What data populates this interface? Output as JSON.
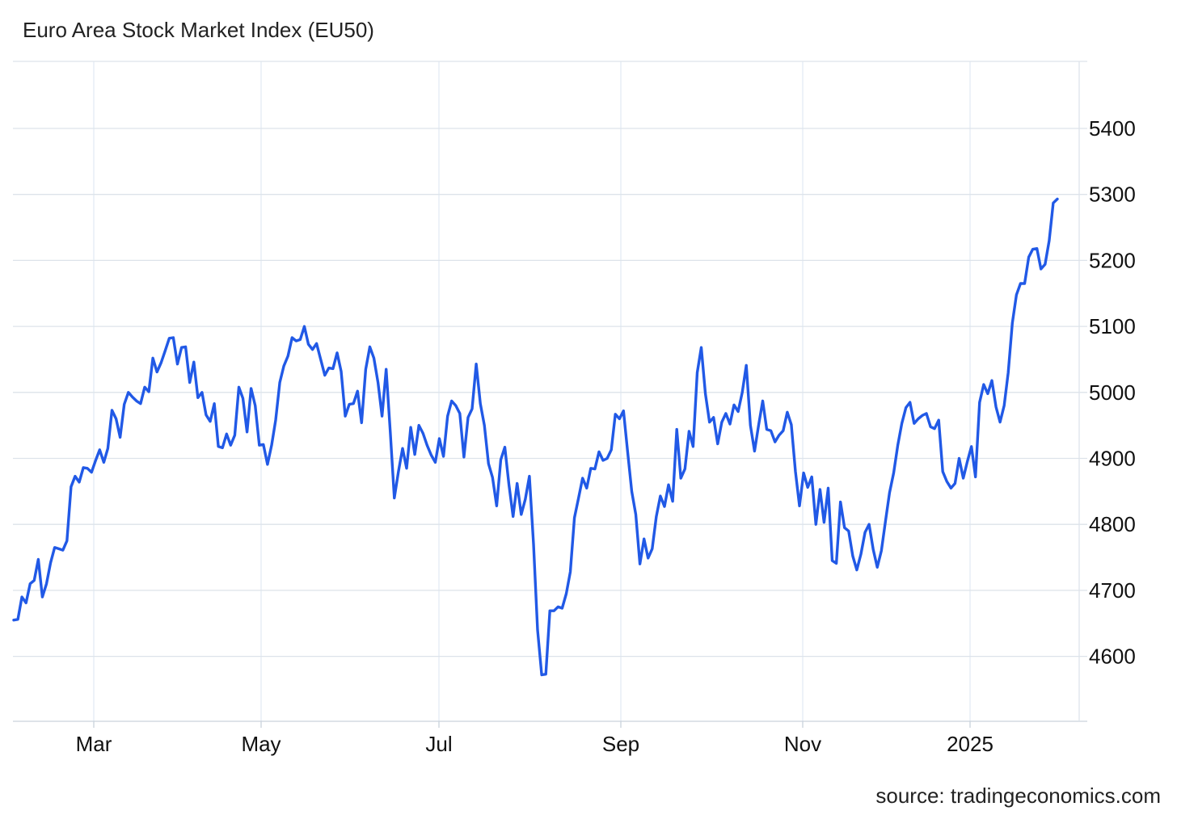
{
  "chart_data": {
    "type": "line",
    "title": "Euro Area Stock Market Index (EU50)",
    "source": "source: tradingeconomics.com",
    "xlabel": "",
    "ylabel": "",
    "grid": true,
    "y_axis_side": "right",
    "line_color": "#2159e6",
    "ylim": [
      4510,
      5510
    ],
    "xlim": [
      0,
      323
    ],
    "y_ticks": [
      {
        "value": 4600,
        "label": "4600"
      },
      {
        "value": 4700,
        "label": "4700"
      },
      {
        "value": 4800,
        "label": "4800"
      },
      {
        "value": 4900,
        "label": "4900"
      },
      {
        "value": 5000,
        "label": "5000"
      },
      {
        "value": 5100,
        "label": "5100"
      },
      {
        "value": 5200,
        "label": "5200"
      },
      {
        "value": 5300,
        "label": "5300"
      },
      {
        "value": 5400,
        "label": "5400"
      }
    ],
    "x_ticks": [
      {
        "x": 24,
        "label": "Mar"
      },
      {
        "x": 75,
        "label": "May"
      },
      {
        "x": 128,
        "label": "Jul"
      },
      {
        "x": 183,
        "label": "Sep"
      },
      {
        "x": 238,
        "label": "Nov"
      },
      {
        "x": 289,
        "label": "2025"
      }
    ],
    "series": [
      {
        "values": [
          [
            0,
            4655
          ],
          [
            1,
            4656
          ],
          [
            2,
            4690
          ],
          [
            3,
            4681
          ],
          [
            4,
            4710
          ],
          [
            5,
            4715
          ],
          [
            6,
            4747
          ],
          [
            7,
            4690
          ],
          [
            8,
            4710
          ],
          [
            9,
            4742
          ],
          [
            10,
            4765
          ],
          [
            11,
            4763
          ],
          [
            12,
            4761
          ],
          [
            13,
            4775
          ],
          [
            14,
            4857
          ],
          [
            15,
            4873
          ],
          [
            16,
            4864
          ],
          [
            17,
            4886
          ],
          [
            18,
            4885
          ],
          [
            19,
            4879
          ],
          [
            20,
            4897
          ],
          [
            21,
            4913
          ],
          [
            22,
            4894
          ],
          [
            23,
            4915
          ],
          [
            24,
            4973
          ],
          [
            25,
            4960
          ],
          [
            26,
            4932
          ],
          [
            27,
            4982
          ],
          [
            28,
            5000
          ],
          [
            29,
            4993
          ],
          [
            30,
            4987
          ],
          [
            31,
            4983
          ],
          [
            32,
            5008
          ],
          [
            33,
            5001
          ],
          [
            34,
            5052
          ],
          [
            35,
            5031
          ],
          [
            36,
            5045
          ],
          [
            37,
            5063
          ],
          [
            38,
            5082
          ],
          [
            39,
            5083
          ],
          [
            40,
            5043
          ],
          [
            41,
            5068
          ],
          [
            42,
            5069
          ],
          [
            43,
            5015
          ],
          [
            44,
            5046
          ],
          [
            45,
            4992
          ],
          [
            46,
            5000
          ],
          [
            47,
            4966
          ],
          [
            48,
            4956
          ],
          [
            49,
            4983
          ],
          [
            50,
            4918
          ],
          [
            51,
            4916
          ],
          [
            52,
            4937
          ],
          [
            53,
            4920
          ],
          [
            54,
            4935
          ],
          [
            55,
            5008
          ],
          [
            56,
            4991
          ],
          [
            57,
            4940
          ],
          [
            58,
            5006
          ],
          [
            59,
            4980
          ],
          [
            60,
            4920
          ],
          [
            61,
            4921
          ],
          [
            62,
            4891
          ],
          [
            63,
            4920
          ],
          [
            64,
            4958
          ],
          [
            65,
            5015
          ],
          [
            66,
            5040
          ],
          [
            67,
            5055
          ],
          [
            68,
            5083
          ],
          [
            69,
            5078
          ],
          [
            70,
            5080
          ],
          [
            71,
            5100
          ],
          [
            72,
            5073
          ],
          [
            73,
            5065
          ],
          [
            74,
            5074
          ],
          [
            75,
            5050
          ],
          [
            76,
            5026
          ],
          [
            77,
            5037
          ],
          [
            78,
            5036
          ],
          [
            79,
            5060
          ],
          [
            80,
            5032
          ],
          [
            81,
            4964
          ],
          [
            82,
            4982
          ],
          [
            83,
            4983
          ],
          [
            84,
            5002
          ],
          [
            85,
            4954
          ],
          [
            86,
            5035
          ],
          [
            87,
            5069
          ],
          [
            88,
            5052
          ],
          [
            89,
            5015
          ],
          [
            90,
            4964
          ],
          [
            91,
            5035
          ],
          [
            92,
            4940
          ],
          [
            93,
            4840
          ],
          [
            94,
            4880
          ],
          [
            95,
            4915
          ],
          [
            96,
            4885
          ],
          [
            97,
            4947
          ],
          [
            98,
            4906
          ],
          [
            99,
            4950
          ],
          [
            100,
            4938
          ],
          [
            101,
            4920
          ],
          [
            102,
            4905
          ],
          [
            103,
            4894
          ],
          [
            104,
            4930
          ],
          [
            105,
            4903
          ],
          [
            106,
            4964
          ],
          [
            107,
            4987
          ],
          [
            108,
            4980
          ],
          [
            109,
            4968
          ],
          [
            110,
            4902
          ],
          [
            111,
            4962
          ],
          [
            112,
            4975
          ],
          [
            113,
            5043
          ],
          [
            114,
            4983
          ],
          [
            115,
            4950
          ],
          [
            116,
            4892
          ],
          [
            117,
            4871
          ],
          [
            118,
            4828
          ],
          [
            119,
            4898
          ],
          [
            120,
            4917
          ],
          [
            121,
            4860
          ],
          [
            122,
            4812
          ],
          [
            123,
            4862
          ],
          [
            124,
            4815
          ],
          [
            125,
            4838
          ],
          [
            126,
            4873
          ],
          [
            127,
            4770
          ],
          [
            128,
            4640
          ],
          [
            129,
            4572
          ],
          [
            130,
            4573
          ],
          [
            131,
            4669
          ],
          [
            132,
            4669
          ],
          [
            133,
            4675
          ],
          [
            134,
            4673
          ],
          [
            135,
            4695
          ],
          [
            136,
            4728
          ],
          [
            137,
            4810
          ],
          [
            138,
            4840
          ],
          [
            139,
            4870
          ],
          [
            140,
            4855
          ],
          [
            141,
            4885
          ],
          [
            142,
            4884
          ],
          [
            143,
            4910
          ],
          [
            144,
            4897
          ],
          [
            145,
            4900
          ],
          [
            146,
            4913
          ],
          [
            147,
            4967
          ],
          [
            148,
            4960
          ],
          [
            149,
            4972
          ],
          [
            150,
            4910
          ],
          [
            151,
            4850
          ],
          [
            152,
            4815
          ],
          [
            153,
            4740
          ],
          [
            154,
            4778
          ],
          [
            155,
            4749
          ],
          [
            156,
            4763
          ],
          [
            157,
            4812
          ],
          [
            158,
            4843
          ],
          [
            159,
            4827
          ],
          [
            160,
            4860
          ],
          [
            161,
            4835
          ],
          [
            162,
            4944
          ],
          [
            163,
            4870
          ],
          [
            164,
            4884
          ],
          [
            165,
            4941
          ],
          [
            166,
            4918
          ],
          [
            167,
            5030
          ],
          [
            168,
            5068
          ],
          [
            169,
            4998
          ],
          [
            170,
            4955
          ],
          [
            171,
            4962
          ],
          [
            172,
            4922
          ],
          [
            173,
            4955
          ],
          [
            174,
            4968
          ],
          [
            175,
            4952
          ],
          [
            176,
            4981
          ],
          [
            177,
            4971
          ],
          [
            178,
            5000
          ],
          [
            179,
            5041
          ],
          [
            180,
            4950
          ],
          [
            181,
            4911
          ],
          [
            182,
            4950
          ],
          [
            183,
            4987
          ],
          [
            184,
            4944
          ],
          [
            185,
            4942
          ],
          [
            186,
            4925
          ],
          [
            187,
            4935
          ],
          [
            188,
            4942
          ],
          [
            189,
            4970
          ],
          [
            190,
            4951
          ],
          [
            191,
            4880
          ],
          [
            192,
            4828
          ],
          [
            193,
            4878
          ],
          [
            194,
            4856
          ],
          [
            195,
            4872
          ],
          [
            196,
            4800
          ],
          [
            197,
            4853
          ],
          [
            198,
            4803
          ],
          [
            199,
            4855
          ],
          [
            200,
            4745
          ],
          [
            201,
            4741
          ],
          [
            202,
            4834
          ],
          [
            203,
            4795
          ],
          [
            204,
            4790
          ],
          [
            205,
            4752
          ],
          [
            206,
            4731
          ],
          [
            207,
            4755
          ],
          [
            208,
            4788
          ],
          [
            209,
            4800
          ],
          [
            210,
            4762
          ],
          [
            211,
            4735
          ],
          [
            212,
            4760
          ],
          [
            213,
            4805
          ],
          [
            214,
            4848
          ],
          [
            215,
            4878
          ],
          [
            216,
            4920
          ],
          [
            217,
            4953
          ],
          [
            218,
            4977
          ],
          [
            219,
            4985
          ],
          [
            220,
            4953
          ],
          [
            221,
            4960
          ],
          [
            222,
            4965
          ],
          [
            223,
            4968
          ],
          [
            224,
            4948
          ],
          [
            225,
            4945
          ],
          [
            226,
            4958
          ],
          [
            227,
            4880
          ],
          [
            228,
            4865
          ],
          [
            229,
            4855
          ],
          [
            230,
            4862
          ],
          [
            231,
            4900
          ],
          [
            232,
            4870
          ],
          [
            233,
            4895
          ],
          [
            234,
            4918
          ],
          [
            235,
            4872
          ],
          [
            236,
            4985
          ],
          [
            237,
            5012
          ],
          [
            238,
            4998
          ],
          [
            239,
            5018
          ],
          [
            240,
            4978
          ],
          [
            241,
            4955
          ],
          [
            242,
            4980
          ],
          [
            243,
            5030
          ],
          [
            244,
            5105
          ],
          [
            245,
            5148
          ],
          [
            246,
            5165
          ],
          [
            247,
            5165
          ],
          [
            248,
            5205
          ],
          [
            249,
            5217
          ],
          [
            250,
            5218
          ],
          [
            251,
            5187
          ],
          [
            252,
            5194
          ],
          [
            253,
            5230
          ],
          [
            254,
            5287
          ],
          [
            255,
            5293
          ]
        ]
      }
    ]
  }
}
